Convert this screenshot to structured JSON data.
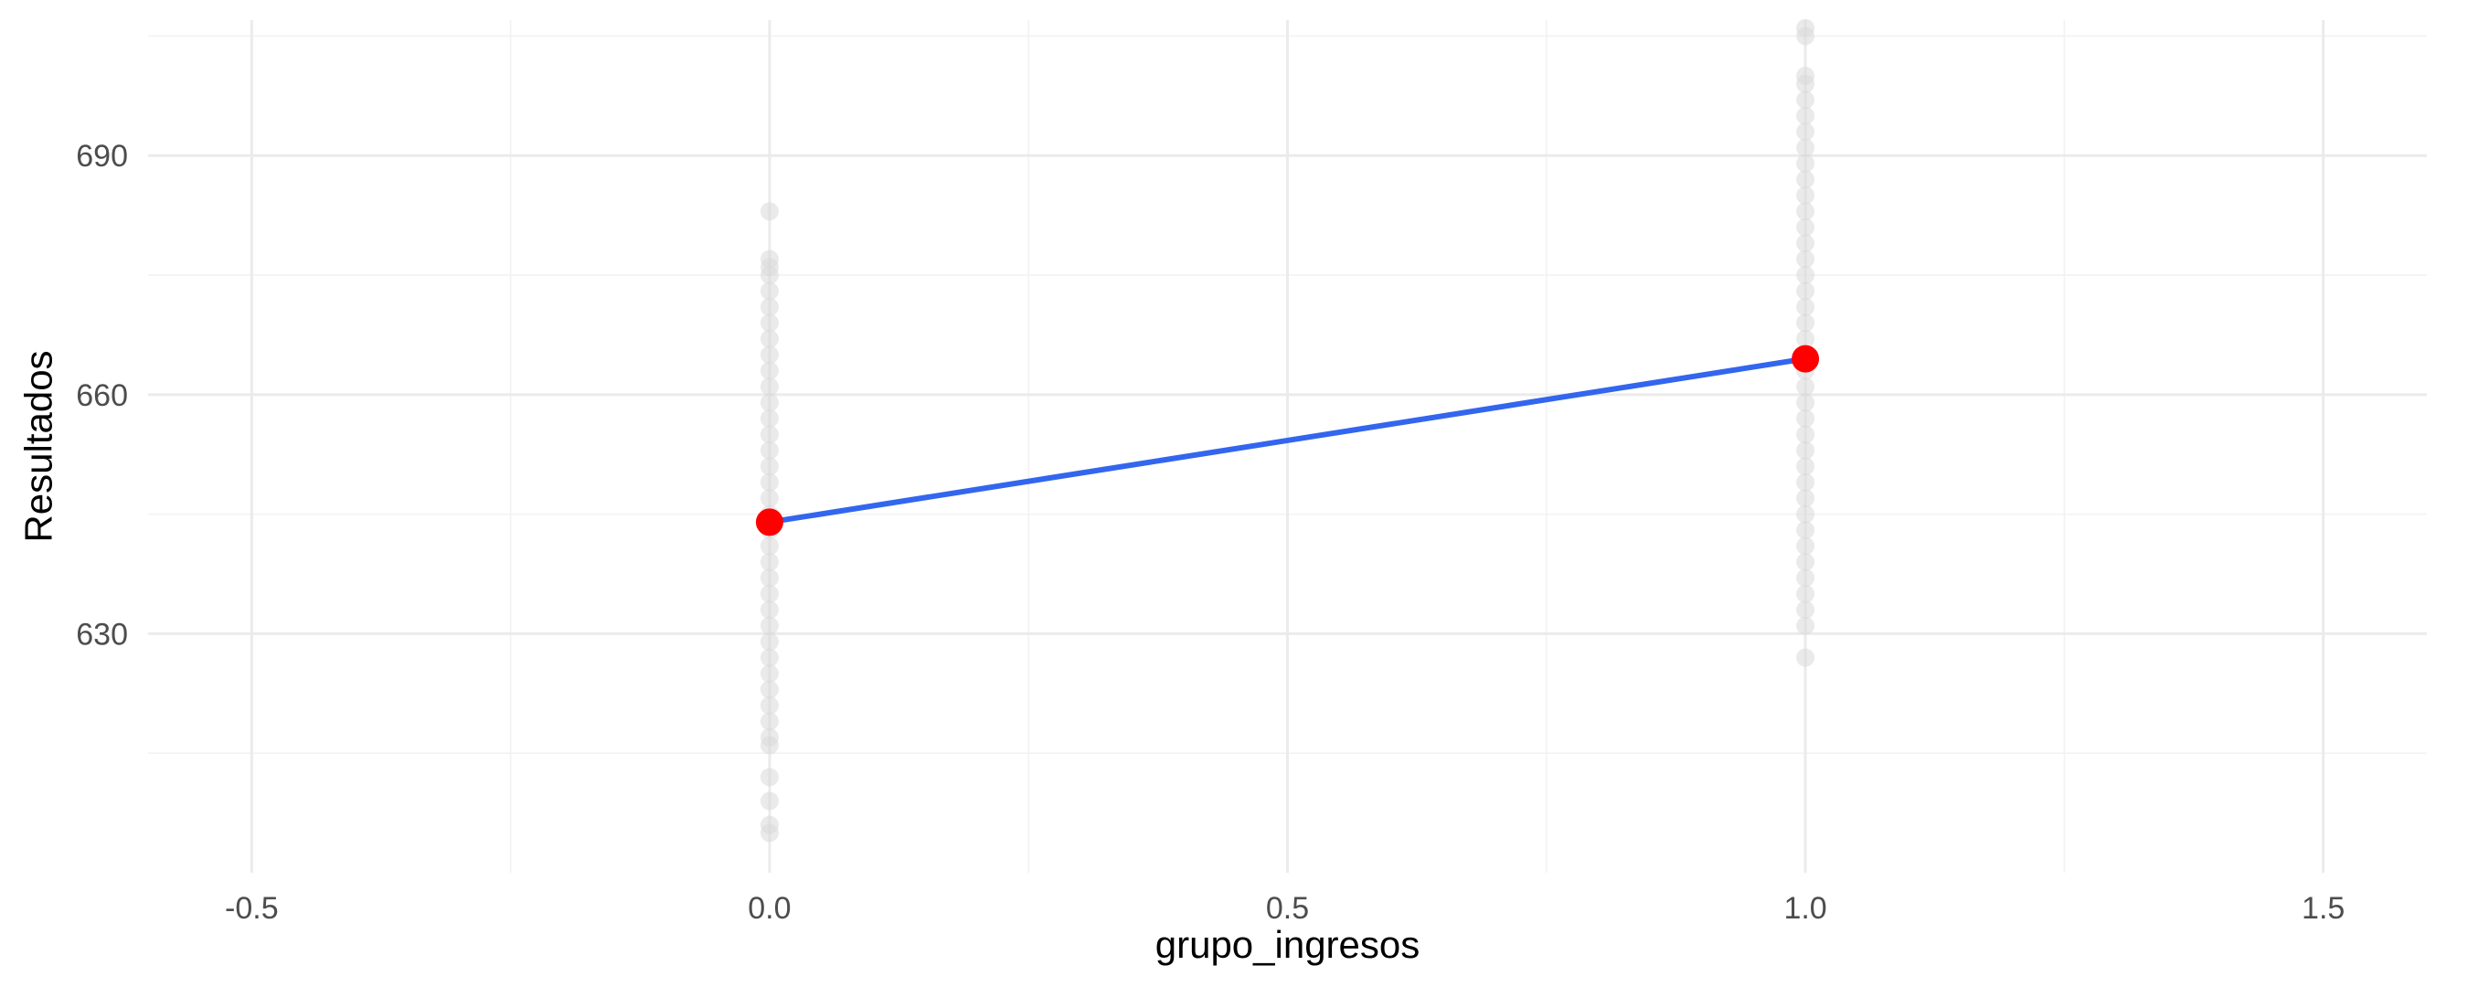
{
  "chart_data": {
    "type": "scatter",
    "title": "",
    "xlabel": "grupo_ingresos",
    "ylabel": "Resultados",
    "xlim": [
      -0.6,
      1.6
    ],
    "ylim": [
      600,
      707
    ],
    "x_ticks": [
      -0.5,
      0.0,
      0.5,
      1.0,
      1.5
    ],
    "x_tick_labels": [
      "-0.5",
      "0.0",
      "0.5",
      "1.0",
      "1.5"
    ],
    "y_ticks": [
      630,
      660,
      690
    ],
    "y_tick_labels": [
      "630",
      "660",
      "690"
    ],
    "grid": true,
    "legend": "none",
    "series": [
      {
        "kind": "points",
        "color": "#d9d9d9",
        "opacity": 0.55,
        "points": [
          [
            0,
            683
          ],
          [
            0,
            677
          ],
          [
            0,
            676
          ],
          [
            0,
            675
          ],
          [
            0,
            673
          ],
          [
            0,
            671
          ],
          [
            0,
            669
          ],
          [
            0,
            667
          ],
          [
            0,
            665
          ],
          [
            0,
            663
          ],
          [
            0,
            661
          ],
          [
            0,
            659
          ],
          [
            0,
            657
          ],
          [
            0,
            655
          ],
          [
            0,
            653
          ],
          [
            0,
            651
          ],
          [
            0,
            649
          ],
          [
            0,
            647
          ],
          [
            0,
            645
          ],
          [
            0,
            643
          ],
          [
            0,
            641
          ],
          [
            0,
            639
          ],
          [
            0,
            637
          ],
          [
            0,
            635
          ],
          [
            0,
            633
          ],
          [
            0,
            631
          ],
          [
            0,
            629
          ],
          [
            0,
            627
          ],
          [
            0,
            625
          ],
          [
            0,
            623
          ],
          [
            0,
            621
          ],
          [
            0,
            619
          ],
          [
            0,
            617
          ],
          [
            0,
            616
          ],
          [
            0,
            612
          ],
          [
            0,
            609
          ],
          [
            0,
            606
          ],
          [
            0,
            605
          ],
          [
            1,
            706
          ],
          [
            1,
            705
          ],
          [
            1,
            700
          ],
          [
            1,
            699
          ],
          [
            1,
            697
          ],
          [
            1,
            695
          ],
          [
            1,
            693
          ],
          [
            1,
            691
          ],
          [
            1,
            689
          ],
          [
            1,
            687
          ],
          [
            1,
            685
          ],
          [
            1,
            683
          ],
          [
            1,
            681
          ],
          [
            1,
            679
          ],
          [
            1,
            677
          ],
          [
            1,
            675
          ],
          [
            1,
            673
          ],
          [
            1,
            671
          ],
          [
            1,
            669
          ],
          [
            1,
            667
          ],
          [
            1,
            665
          ],
          [
            1,
            663
          ],
          [
            1,
            661
          ],
          [
            1,
            659
          ],
          [
            1,
            657
          ],
          [
            1,
            655
          ],
          [
            1,
            653
          ],
          [
            1,
            651
          ],
          [
            1,
            649
          ],
          [
            1,
            647
          ],
          [
            1,
            645
          ],
          [
            1,
            643
          ],
          [
            1,
            641
          ],
          [
            1,
            639
          ],
          [
            1,
            637
          ],
          [
            1,
            635
          ],
          [
            1,
            633
          ],
          [
            1,
            631
          ],
          [
            1,
            627
          ]
        ]
      },
      {
        "kind": "line",
        "color": "#3366ee",
        "x": [
          0,
          1
        ],
        "y": [
          644,
          664.5
        ]
      },
      {
        "kind": "means",
        "color": "#ff0000",
        "x": [
          0,
          1
        ],
        "y": [
          644,
          664.5
        ]
      }
    ]
  }
}
